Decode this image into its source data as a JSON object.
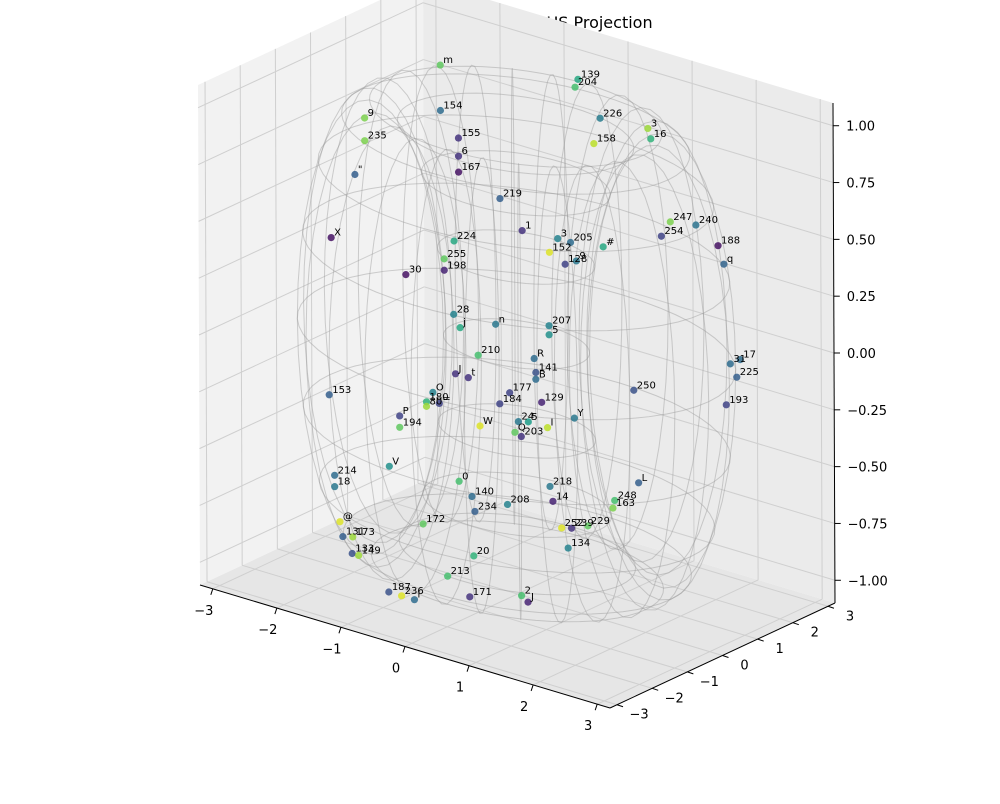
{
  "chart_data": {
    "type": "scatter",
    "title": "Token Embeddings - TORUS Projection",
    "xlim": [
      -3.2,
      3.2
    ],
    "ylim": [
      -3.2,
      3.2
    ],
    "zlim": [
      -1.1,
      1.1
    ],
    "x_ticks": [
      "−3",
      "−2",
      "−1",
      "0",
      "1",
      "2",
      "3"
    ],
    "y_ticks": [
      "−3",
      "−2",
      "−1",
      "0",
      "1",
      "2",
      "3"
    ],
    "z_ticks": [
      "−1.00",
      "−0.75",
      "−0.50",
      "−0.25",
      "0.00",
      "0.25",
      "0.50",
      "0.75",
      "1.00"
    ],
    "grid": true,
    "wireframe": "torus",
    "colormap": "viridis",
    "points": [
      {
        "label": "3",
        "x": 0.8,
        "y": 2.3,
        "z": 0.85,
        "c": 0.85
      },
      {
        "label": "16",
        "x": 0.9,
        "y": 2.2,
        "z": 0.82,
        "c": 0.65
      },
      {
        "label": "204",
        "x": -0.5,
        "y": 2.6,
        "z": 0.9,
        "c": 0.7
      },
      {
        "label": "139",
        "x": -0.4,
        "y": 2.5,
        "z": 0.95,
        "c": 0.6
      },
      {
        "label": "226",
        "x": 0.0,
        "y": 2.4,
        "z": 0.82,
        "c": 0.42
      },
      {
        "label": "158",
        "x": -0.1,
        "y": 2.4,
        "z": 0.7,
        "c": 0.9
      },
      {
        "label": "240",
        "x": 1.6,
        "y": 2.2,
        "z": 0.5,
        "c": 0.38
      },
      {
        "label": "188",
        "x": 2.0,
        "y": 2.1,
        "z": 0.45,
        "c": 0.05
      },
      {
        "label": "q",
        "x": 2.2,
        "y": 1.9,
        "z": 0.4,
        "c": 0.32
      },
      {
        "label": "247",
        "x": 1.2,
        "y": 2.2,
        "z": 0.48,
        "c": 0.8
      },
      {
        "label": "254",
        "x": 1.5,
        "y": 1.4,
        "z": 0.5,
        "c": 0.2
      },
      {
        "label": "m",
        "x": -2.0,
        "y": 1.5,
        "z": 0.95,
        "c": 0.75
      },
      {
        "label": "154",
        "x": -2.0,
        "y": 1.5,
        "z": 0.75,
        "c": 0.35
      },
      {
        "label": "9",
        "x": -2.8,
        "y": 0.8,
        "z": 0.7,
        "c": 0.8
      },
      {
        "label": "235",
        "x": -2.8,
        "y": 0.8,
        "z": 0.6,
        "c": 0.8
      },
      {
        "label": "\"",
        "x": -2.9,
        "y": 0.7,
        "z": 0.45,
        "c": 0.3
      },
      {
        "label": "X",
        "x": -3.0,
        "y": 0.2,
        "z": 0.2,
        "c": 0.05
      },
      {
        "label": "155",
        "x": -1.5,
        "y": 1.1,
        "z": 0.7,
        "c": 0.15
      },
      {
        "label": "6",
        "x": -1.5,
        "y": 1.1,
        "z": 0.62,
        "c": 0.15
      },
      {
        "label": "167",
        "x": -1.5,
        "y": 1.1,
        "z": 0.55,
        "c": 0.05
      },
      {
        "label": "219",
        "x": -0.8,
        "y": 1.0,
        "z": 0.5,
        "c": 0.3
      },
      {
        "label": "1",
        "x": -0.4,
        "y": 0.9,
        "z": 0.4,
        "c": 0.15
      },
      {
        "label": "3",
        "x": 0.1,
        "y": 1.0,
        "z": 0.4,
        "c": 0.45
      },
      {
        "label": "205",
        "x": 0.3,
        "y": 1.0,
        "z": 0.4,
        "c": 0.35
      },
      {
        "label": "#",
        "x": 0.7,
        "y": 1.2,
        "z": 0.4,
        "c": 0.6
      },
      {
        "label": "9",
        "x": 0.5,
        "y": 0.8,
        "z": 0.35,
        "c": 0.4
      },
      {
        "label": "152",
        "x": 0.3,
        "y": 0.4,
        "z": 0.4,
        "c": 0.95
      },
      {
        "label": "128",
        "x": 0.6,
        "y": 0.3,
        "z": 0.38,
        "c": 0.2
      },
      {
        "label": "207",
        "x": 0.4,
        "y": 0.2,
        "z": 0.1,
        "c": 0.45
      },
      {
        "label": "5",
        "x": 0.4,
        "y": 0.2,
        "z": 0.06,
        "c": 0.5
      },
      {
        "label": "R",
        "x": 0.0,
        "y": 0.5,
        "z": -0.1,
        "c": 0.35
      },
      {
        "label": "n",
        "x": -0.6,
        "y": 0.5,
        "z": 0.0,
        "c": 0.4
      },
      {
        "label": "224",
        "x": -1.3,
        "y": 0.6,
        "z": 0.3,
        "c": 0.6
      },
      {
        "label": "255",
        "x": -1.4,
        "y": 0.5,
        "z": 0.22,
        "c": 0.75
      },
      {
        "label": "198",
        "x": -1.4,
        "y": 0.5,
        "z": 0.17,
        "c": 0.1
      },
      {
        "label": "30",
        "x": -2.0,
        "y": 0.5,
        "z": 0.1,
        "c": 0.05
      },
      {
        "label": "28",
        "x": -1.2,
        "y": 0.4,
        "z": 0.0,
        "c": 0.45
      },
      {
        "label": "j",
        "x": -1.1,
        "y": 0.4,
        "z": -0.05,
        "c": 0.6
      },
      {
        "label": "31",
        "x": 2.9,
        "y": 0.8,
        "z": 0.1,
        "c": 0.35
      },
      {
        "label": "17",
        "x": 3.0,
        "y": 0.9,
        "z": 0.12,
        "c": 0.35
      },
      {
        "label": "225",
        "x": 3.0,
        "y": 0.8,
        "z": 0.05,
        "c": 0.3
      },
      {
        "label": "193",
        "x": 3.0,
        "y": 0.5,
        "z": -0.05,
        "c": 0.2
      },
      {
        "label": "250",
        "x": 1.5,
        "y": 0.6,
        "z": -0.12,
        "c": 0.25
      },
      {
        "label": "141",
        "x": 0.3,
        "y": 0.0,
        "z": -0.1,
        "c": 0.25
      },
      {
        "label": "B",
        "x": 0.3,
        "y": 0.0,
        "z": -0.13,
        "c": 0.35
      },
      {
        "label": "210",
        "x": -0.6,
        "y": 0.0,
        "z": -0.1,
        "c": 0.7
      },
      {
        "label": "Y",
        "x": 0.9,
        "y": 0.0,
        "z": -0.25,
        "c": 0.4
      },
      {
        "label": "129",
        "x": 0.5,
        "y": -0.2,
        "z": -0.2,
        "c": 0.1
      },
      {
        "label": "177",
        "x": 0.0,
        "y": -0.2,
        "z": -0.2,
        "c": 0.2
      },
      {
        "label": "184",
        "x": -0.1,
        "y": -0.3,
        "z": -0.25,
        "c": 0.2
      },
      {
        "label": "J",
        "x": -0.9,
        "y": -0.1,
        "z": -0.2,
        "c": 0.15
      },
      {
        "label": "t",
        "x": -0.7,
        "y": -0.1,
        "z": -0.2,
        "c": 0.15
      },
      {
        "label": "O",
        "x": -1.2,
        "y": -0.2,
        "z": -0.3,
        "c": 0.45
      },
      {
        "label": "=",
        "x": -1.1,
        "y": -0.2,
        "z": -0.34,
        "c": 0.2
      },
      {
        "label": "180",
        "x": -1.3,
        "y": -0.2,
        "z": -0.35,
        "c": 0.65
      },
      {
        "label": "80",
        "x": -1.3,
        "y": -0.2,
        "z": -0.37,
        "c": 0.85
      },
      {
        "label": "W",
        "x": -0.3,
        "y": -0.5,
        "z": -0.35,
        "c": 0.95
      },
      {
        "label": "24",
        "x": 0.3,
        "y": -0.5,
        "z": -0.28,
        "c": 0.4
      },
      {
        "label": "5",
        "x": 0.4,
        "y": -0.4,
        "z": -0.28,
        "c": 0.55
      },
      {
        "label": "I",
        "x": 0.7,
        "y": -0.4,
        "z": -0.28,
        "c": 0.9
      },
      {
        "label": "Q",
        "x": 0.3,
        "y": -0.6,
        "z": -0.32,
        "c": 0.75
      },
      {
        "label": "203",
        "x": 0.4,
        "y": -0.6,
        "z": -0.33,
        "c": 0.15
      },
      {
        "label": "L",
        "x": 1.9,
        "y": 0.0,
        "z": -0.45,
        "c": 0.3
      },
      {
        "label": "194",
        "x": -1.5,
        "y": -0.6,
        "z": -0.45,
        "c": 0.75
      },
      {
        "label": "P",
        "x": -1.5,
        "y": -0.6,
        "z": -0.4,
        "c": 0.2
      },
      {
        "label": "153",
        "x": -2.6,
        "y": -0.6,
        "z": -0.4,
        "c": 0.3
      },
      {
        "label": "0",
        "x": -0.3,
        "y": -1.1,
        "z": -0.55,
        "c": 0.7
      },
      {
        "label": "V",
        "x": -1.5,
        "y": -0.9,
        "z": -0.6,
        "c": 0.5
      },
      {
        "label": "218",
        "x": 0.9,
        "y": -0.7,
        "z": -0.5,
        "c": 0.4
      },
      {
        "label": "14",
        "x": 1.0,
        "y": -0.8,
        "z": -0.55,
        "c": 0.1
      },
      {
        "label": "248",
        "x": 1.8,
        "y": -0.5,
        "z": -0.5,
        "c": 0.7
      },
      {
        "label": "163",
        "x": 1.8,
        "y": -0.55,
        "z": -0.53,
        "c": 0.8
      },
      {
        "label": "208",
        "x": 0.4,
        "y": -1.0,
        "z": -0.6,
        "c": 0.45
      },
      {
        "label": "140",
        "x": -0.1,
        "y": -1.1,
        "z": -0.6,
        "c": 0.35
      },
      {
        "label": "234",
        "x": 0.0,
        "y": -1.2,
        "z": -0.65,
        "c": 0.3
      },
      {
        "label": "229",
        "x": 1.6,
        "y": -0.9,
        "z": -0.6,
        "c": 0.75
      },
      {
        "label": "239",
        "x": 1.4,
        "y": -1.0,
        "z": -0.62,
        "c": 0.15
      },
      {
        "label": "252",
        "x": 1.3,
        "y": -1.1,
        "z": -0.62,
        "c": 0.95
      },
      {
        "label": "134",
        "x": 1.4,
        "y": -1.1,
        "z": -0.7,
        "c": 0.45
      },
      {
        "label": "214",
        "x": -2.3,
        "y": -1.0,
        "z": -0.7,
        "c": 0.35
      },
      {
        "label": "18",
        "x": -2.3,
        "y": -1.0,
        "z": -0.75,
        "c": 0.4
      },
      {
        "label": "@",
        "x": -2.0,
        "y": -1.4,
        "z": -0.85,
        "c": 0.95
      },
      {
        "label": "173",
        "x": -1.8,
        "y": -1.4,
        "z": -0.9,
        "c": 0.85
      },
      {
        "label": "131",
        "x": -1.9,
        "y": -1.5,
        "z": -0.9,
        "c": 0.3
      },
      {
        "label": "133",
        "x": -1.7,
        "y": -1.6,
        "z": -0.95,
        "c": 0.25
      },
      {
        "label": "149",
        "x": -1.6,
        "y": -1.6,
        "z": -0.95,
        "c": 0.85
      },
      {
        "label": "172",
        "x": -0.7,
        "y": -1.4,
        "z": -0.75,
        "c": 0.75
      },
      {
        "label": "20",
        "x": 0.2,
        "y": -1.6,
        "z": -0.8,
        "c": 0.65
      },
      {
        "label": "213",
        "x": -0.1,
        "y": -1.8,
        "z": -0.9,
        "c": 0.7
      },
      {
        "label": "171",
        "x": 0.3,
        "y": -1.9,
        "z": -0.95,
        "c": 0.15
      },
      {
        "label": "2",
        "x": 1.0,
        "y": -1.7,
        "z": -0.9,
        "c": 0.7
      },
      {
        "label": "J",
        "x": 1.1,
        "y": -1.7,
        "z": -0.92,
        "c": 0.1
      },
      {
        "label": "187",
        "x": -0.8,
        "y": -2.2,
        "z": -1.0,
        "c": 0.25
      },
      {
        "label": "236",
        "x": -0.6,
        "y": -2.2,
        "z": -1.0,
        "c": 0.95
      },
      {
        "label": "l",
        "x": -0.4,
        "y": -2.2,
        "z": -1.0,
        "c": 0.35
      }
    ]
  }
}
